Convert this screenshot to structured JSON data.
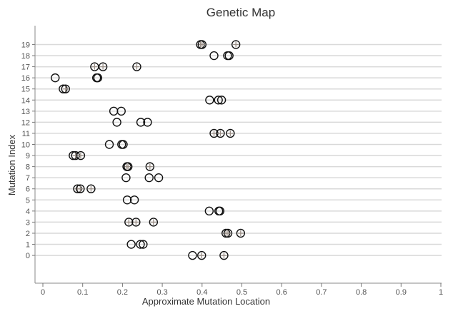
{
  "chart_data": {
    "type": "scatter",
    "title": "Genetic Map",
    "xlabel": "Approximate Mutation Location",
    "ylabel": "Mutation Index",
    "xlim": [
      0,
      1
    ],
    "ylim": [
      -2.5,
      20.7
    ],
    "x_ticks": [
      0,
      0.1,
      0.2,
      0.3,
      0.4,
      0.5,
      0.6,
      0.7,
      0.8,
      0.9,
      1
    ],
    "y_ticks": [
      0,
      1,
      2,
      3,
      4,
      5,
      6,
      7,
      8,
      9,
      10,
      11,
      12,
      13,
      14,
      15,
      16,
      17,
      18,
      19
    ],
    "grid": "horizontal",
    "legend": "none",
    "marker": "open circle",
    "marker_color": "#111111",
    "plus_color": "#9a8f87",
    "grid_color": "#d9d9d9",
    "points": [
      {
        "y": 0,
        "x": 0.376,
        "plus": false
      },
      {
        "y": 0,
        "x": 0.399,
        "plus": true
      },
      {
        "y": 0,
        "x": 0.455,
        "plus": true
      },
      {
        "y": 1,
        "x": 0.222,
        "plus": false
      },
      {
        "y": 1,
        "x": 0.245,
        "plus": false
      },
      {
        "y": 1,
        "x": 0.252,
        "plus": false
      },
      {
        "y": 2,
        "x": 0.46,
        "plus": true
      },
      {
        "y": 2,
        "x": 0.465,
        "plus": true
      },
      {
        "y": 2,
        "x": 0.497,
        "plus": true
      },
      {
        "y": 3,
        "x": 0.216,
        "plus": true
      },
      {
        "y": 3,
        "x": 0.234,
        "plus": true
      },
      {
        "y": 3,
        "x": 0.278,
        "plus": true
      },
      {
        "y": 4,
        "x": 0.418,
        "plus": false
      },
      {
        "y": 4,
        "x": 0.442,
        "plus": false
      },
      {
        "y": 4,
        "x": 0.445,
        "plus": false
      },
      {
        "y": 5,
        "x": 0.212,
        "plus": false
      },
      {
        "y": 5,
        "x": 0.23,
        "plus": false
      },
      {
        "y": 6,
        "x": 0.087,
        "plus": true
      },
      {
        "y": 6,
        "x": 0.094,
        "plus": true
      },
      {
        "y": 6,
        "x": 0.121,
        "plus": true
      },
      {
        "y": 7,
        "x": 0.209,
        "plus": false
      },
      {
        "y": 7,
        "x": 0.267,
        "plus": false
      },
      {
        "y": 7,
        "x": 0.291,
        "plus": false
      },
      {
        "y": 8,
        "x": 0.211,
        "plus": true
      },
      {
        "y": 8,
        "x": 0.214,
        "plus": true
      },
      {
        "y": 8,
        "x": 0.269,
        "plus": true
      },
      {
        "y": 9,
        "x": 0.076,
        "plus": false
      },
      {
        "y": 9,
        "x": 0.082,
        "plus": true
      },
      {
        "y": 9,
        "x": 0.095,
        "plus": true
      },
      {
        "y": 10,
        "x": 0.167,
        "plus": false
      },
      {
        "y": 10,
        "x": 0.198,
        "plus": false
      },
      {
        "y": 10,
        "x": 0.202,
        "plus": false
      },
      {
        "y": 11,
        "x": 0.43,
        "plus": true
      },
      {
        "y": 11,
        "x": 0.446,
        "plus": true
      },
      {
        "y": 11,
        "x": 0.471,
        "plus": true
      },
      {
        "y": 12,
        "x": 0.186,
        "plus": false
      },
      {
        "y": 12,
        "x": 0.246,
        "plus": false
      },
      {
        "y": 12,
        "x": 0.263,
        "plus": false
      },
      {
        "y": 13,
        "x": 0.178,
        "plus": false
      },
      {
        "y": 13,
        "x": 0.197,
        "plus": false
      },
      {
        "y": 14,
        "x": 0.419,
        "plus": false
      },
      {
        "y": 14,
        "x": 0.441,
        "plus": false
      },
      {
        "y": 14,
        "x": 0.449,
        "plus": false
      },
      {
        "y": 15,
        "x": 0.051,
        "plus": false
      },
      {
        "y": 15,
        "x": 0.057,
        "plus": true
      },
      {
        "y": 16,
        "x": 0.031,
        "plus": false
      },
      {
        "y": 16,
        "x": 0.135,
        "plus": false
      },
      {
        "y": 16,
        "x": 0.138,
        "plus": false
      },
      {
        "y": 17,
        "x": 0.13,
        "plus": true
      },
      {
        "y": 17,
        "x": 0.151,
        "plus": true
      },
      {
        "y": 17,
        "x": 0.236,
        "plus": true
      },
      {
        "y": 18,
        "x": 0.43,
        "plus": false
      },
      {
        "y": 18,
        "x": 0.464,
        "plus": false
      },
      {
        "y": 18,
        "x": 0.468,
        "plus": false
      },
      {
        "y": 19,
        "x": 0.396,
        "plus": true
      },
      {
        "y": 19,
        "x": 0.4,
        "plus": true
      },
      {
        "y": 19,
        "x": 0.485,
        "plus": true
      }
    ]
  }
}
